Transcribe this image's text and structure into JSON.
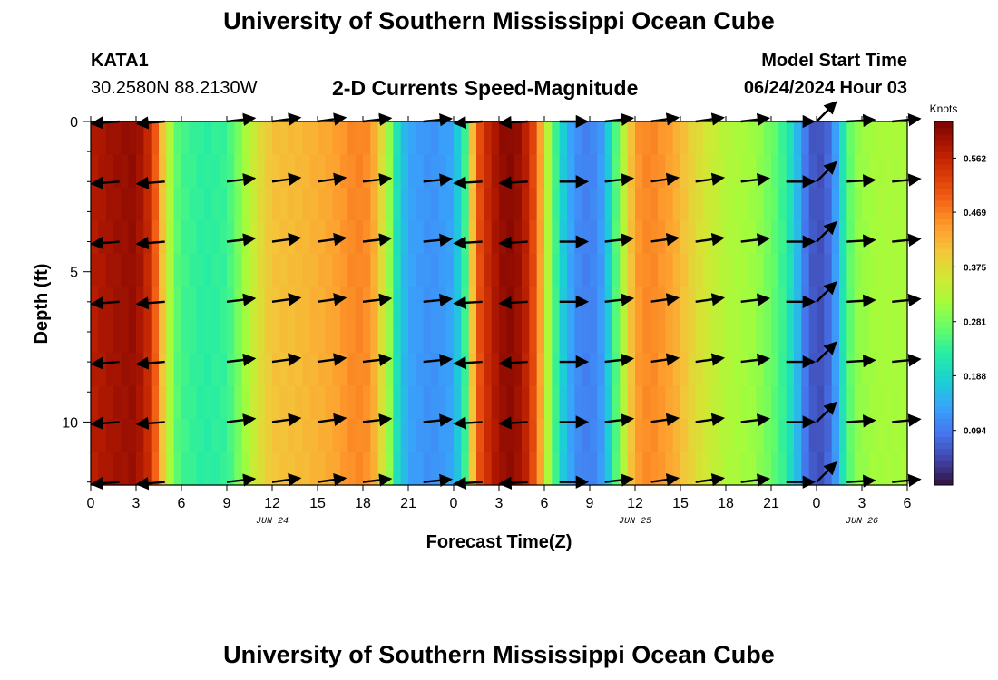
{
  "header": {
    "title": "University of Southern Mississippi Ocean Cube",
    "station": "KATA1",
    "coords": "30.2580N  88.2130W",
    "subtitle": "2-D Currents Speed-Magnitude",
    "model_start_label": "Model Start Time",
    "model_start_value": "06/24/2024 Hour 03"
  },
  "footer": {
    "title": "University of Southern Mississippi Ocean Cube"
  },
  "chart_data": {
    "type": "heatmap",
    "title": "2-D Currents Speed-Magnitude",
    "xlabel": "Forecast Time(Z)",
    "ylabel": "Depth (ft)",
    "xlim": [
      0,
      54
    ],
    "ylim": [
      0,
      12.1
    ],
    "x_tick_values": [
      0,
      3,
      6,
      9,
      12,
      15,
      18,
      21,
      24,
      27,
      30,
      33,
      36,
      39,
      42,
      45,
      48,
      51,
      54
    ],
    "x_tick_labels": [
      "0",
      "3",
      "6",
      "9",
      "12",
      "15",
      "18",
      "21",
      "0",
      "3",
      "6",
      "9",
      "12",
      "15",
      "18",
      "21",
      "0",
      "3",
      "6"
    ],
    "day_labels": [
      {
        "text": "JUN 24",
        "x": 12
      },
      {
        "text": "JUN 25",
        "x": 36
      },
      {
        "text": "JUN 26",
        "x": 51
      }
    ],
    "y_tick_values": [
      0,
      5,
      10
    ],
    "y_tick_labels": [
      "0",
      "5",
      "10"
    ],
    "colorbar": {
      "label": "Knots",
      "min": 0.0,
      "max": 0.625,
      "tick_values": [
        0.094,
        0.188,
        0.281,
        0.375,
        0.469,
        0.562
      ],
      "tick_labels": [
        "0.094",
        "0.188",
        "0.281",
        "0.375",
        "0.469",
        "0.562"
      ]
    },
    "colors": [
      "#30123b",
      "#4145ab",
      "#4675ed",
      "#39a2fc",
      "#1bcfd4",
      "#24eca6",
      "#61fc6c",
      "#a4fc3b",
      "#d1e834",
      "#f3c63a",
      "#fe9b2d",
      "#f36315",
      "#d93806",
      "#b11901",
      "#7a0403"
    ],
    "speed_by_hour": [
      {
        "x": 0,
        "v": 0.58
      },
      {
        "x": 1.5,
        "v": 0.6
      },
      {
        "x": 3,
        "v": 0.61
      },
      {
        "x": 4,
        "v": 0.55
      },
      {
        "x": 4.8,
        "v": 0.4
      },
      {
        "x": 5.5,
        "v": 0.28
      },
      {
        "x": 6,
        "v": 0.25
      },
      {
        "x": 7.5,
        "v": 0.23
      },
      {
        "x": 9,
        "v": 0.24
      },
      {
        "x": 10,
        "v": 0.3
      },
      {
        "x": 11,
        "v": 0.37
      },
      {
        "x": 12,
        "v": 0.41
      },
      {
        "x": 14,
        "v": 0.42
      },
      {
        "x": 16,
        "v": 0.44
      },
      {
        "x": 17.5,
        "v": 0.47
      },
      {
        "x": 18.5,
        "v": 0.46
      },
      {
        "x": 19.5,
        "v": 0.35
      },
      {
        "x": 20.3,
        "v": 0.2
      },
      {
        "x": 21,
        "v": 0.14
      },
      {
        "x": 22.5,
        "v": 0.12
      },
      {
        "x": 24,
        "v": 0.14
      },
      {
        "x": 24.8,
        "v": 0.25
      },
      {
        "x": 25.5,
        "v": 0.5
      },
      {
        "x": 26.5,
        "v": 0.58
      },
      {
        "x": 27.5,
        "v": 0.62
      },
      {
        "x": 28.5,
        "v": 0.6
      },
      {
        "x": 29.5,
        "v": 0.5
      },
      {
        "x": 30.3,
        "v": 0.32
      },
      {
        "x": 31,
        "v": 0.2
      },
      {
        "x": 32,
        "v": 0.12
      },
      {
        "x": 33,
        "v": 0.1
      },
      {
        "x": 34,
        "v": 0.14
      },
      {
        "x": 35,
        "v": 0.3
      },
      {
        "x": 36,
        "v": 0.45
      },
      {
        "x": 37,
        "v": 0.47
      },
      {
        "x": 38.5,
        "v": 0.44
      },
      {
        "x": 40,
        "v": 0.38
      },
      {
        "x": 42,
        "v": 0.33
      },
      {
        "x": 44,
        "v": 0.31
      },
      {
        "x": 45.5,
        "v": 0.26
      },
      {
        "x": 46.5,
        "v": 0.19
      },
      {
        "x": 47.2,
        "v": 0.1
      },
      {
        "x": 48,
        "v": 0.05
      },
      {
        "x": 49,
        "v": 0.09
      },
      {
        "x": 49.8,
        "v": 0.22
      },
      {
        "x": 50.5,
        "v": 0.3
      },
      {
        "x": 52,
        "v": 0.32
      },
      {
        "x": 54,
        "v": 0.32
      }
    ],
    "vector_depths": [
      0,
      2,
      4,
      6,
      8,
      10,
      12
    ],
    "vector_times": [
      1,
      4,
      9,
      12,
      15,
      18,
      22,
      25,
      28,
      31,
      34,
      37,
      40,
      43,
      46,
      48,
      50,
      53
    ],
    "vector_directions": [
      {
        "t": 1,
        "u": -1.0,
        "v": -0.08
      },
      {
        "t": 4,
        "u": -1.0,
        "v": -0.08
      },
      {
        "t": 9,
        "u": 1.0,
        "v": 0.12
      },
      {
        "t": 12,
        "u": 1.0,
        "v": 0.14
      },
      {
        "t": 15,
        "u": 1.0,
        "v": 0.14
      },
      {
        "t": 18,
        "u": 1.0,
        "v": 0.12
      },
      {
        "t": 22,
        "u": 1.0,
        "v": 0.1
      },
      {
        "t": 25,
        "u": -1.0,
        "v": -0.06
      },
      {
        "t": 28,
        "u": -1.0,
        "v": -0.06
      },
      {
        "t": 31,
        "u": 1.0,
        "v": 0.0
      },
      {
        "t": 34,
        "u": 1.0,
        "v": 0.12
      },
      {
        "t": 37,
        "u": 1.0,
        "v": 0.14
      },
      {
        "t": 40,
        "u": 1.0,
        "v": 0.14
      },
      {
        "t": 43,
        "u": 1.0,
        "v": 0.12
      },
      {
        "t": 46,
        "u": 1.0,
        "v": 0.0
      },
      {
        "t": 48,
        "u": 0.7,
        "v": 0.7
      },
      {
        "t": 50,
        "u": 1.0,
        "v": 0.06
      },
      {
        "t": 53,
        "u": 1.0,
        "v": 0.1
      }
    ]
  }
}
